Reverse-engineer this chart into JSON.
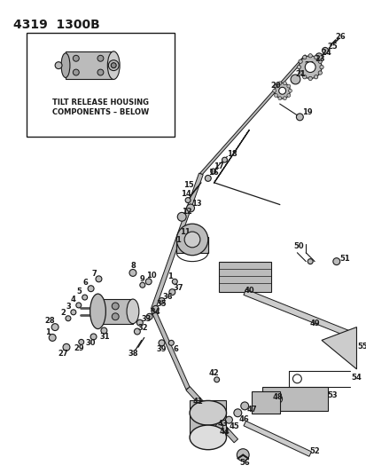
{
  "title": "4319  1300B",
  "bg": "#ffffff",
  "fg": "#1a1a1a",
  "fig_w": 4.14,
  "fig_h": 5.33,
  "dpi": 100,
  "box_text1": "TILT RELEASE HOUSING",
  "box_text2": "COMPONENTS – BELOW"
}
